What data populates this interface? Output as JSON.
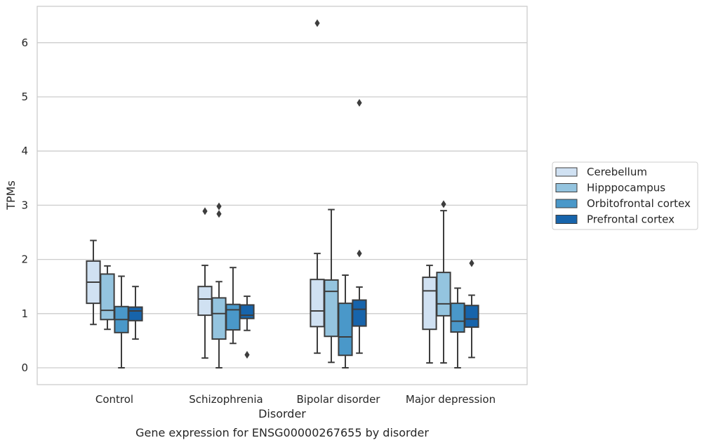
{
  "caption": "Gene expression for ENSG00000267655 by disorder",
  "chart_data": {
    "type": "box",
    "xlabel": "Disorder",
    "ylabel": "TPMs",
    "ylim": [
      -0.3,
      6.7
    ],
    "yticks": [
      0,
      1,
      2,
      3,
      4,
      5,
      6
    ],
    "grid": "horizontal",
    "legend_position": "right",
    "categories": [
      "Control",
      "Schizophrenia",
      "Bipolar disorder",
      "Major depression"
    ],
    "series": [
      {
        "name": "Cerebellum",
        "color": "#d0e1f2",
        "boxes": [
          {
            "min": 0.8,
            "q1": 1.19,
            "median": 1.58,
            "q3": 1.97,
            "max": 2.35,
            "outliers": []
          },
          {
            "min": 0.18,
            "q1": 0.97,
            "median": 1.27,
            "q3": 1.5,
            "max": 1.89,
            "outliers": [
              2.89
            ]
          },
          {
            "min": 0.27,
            "q1": 0.76,
            "median": 1.05,
            "q3": 1.63,
            "max": 2.11,
            "outliers": [
              6.36
            ]
          },
          {
            "min": 0.09,
            "q1": 0.71,
            "median": 1.42,
            "q3": 1.67,
            "max": 1.89,
            "outliers": []
          }
        ]
      },
      {
        "name": "Hipppocampus",
        "color": "#94c4df",
        "boxes": [
          {
            "min": 0.71,
            "q1": 0.89,
            "median": 1.06,
            "q3": 1.73,
            "max": 1.88,
            "outliers": []
          },
          {
            "min": 0.0,
            "q1": 0.53,
            "median": 1.0,
            "q3": 1.29,
            "max": 1.59,
            "outliers": [
              2.84,
              2.98
            ]
          },
          {
            "min": 0.1,
            "q1": 0.58,
            "median": 1.41,
            "q3": 1.62,
            "max": 2.92,
            "outliers": []
          },
          {
            "min": 0.09,
            "q1": 0.96,
            "median": 1.18,
            "q3": 1.76,
            "max": 2.9,
            "outliers": [
              3.02
            ]
          }
        ]
      },
      {
        "name": "Orbitofrontal cortex",
        "color": "#4a98c9",
        "boxes": [
          {
            "min": 0.0,
            "q1": 0.65,
            "median": 0.89,
            "q3": 1.13,
            "max": 1.69,
            "outliers": []
          },
          {
            "min": 0.45,
            "q1": 0.7,
            "median": 1.07,
            "q3": 1.17,
            "max": 1.85,
            "outliers": []
          },
          {
            "min": 0.0,
            "q1": 0.23,
            "median": 0.57,
            "q3": 1.19,
            "max": 1.71,
            "outliers": []
          },
          {
            "min": 0.0,
            "q1": 0.66,
            "median": 0.86,
            "q3": 1.19,
            "max": 1.47,
            "outliers": []
          }
        ]
      },
      {
        "name": "Prefrontal cortex",
        "color": "#1764ab",
        "boxes": [
          {
            "min": 0.53,
            "q1": 0.87,
            "median": 1.05,
            "q3": 1.12,
            "max": 1.5,
            "outliers": []
          },
          {
            "min": 0.69,
            "q1": 0.91,
            "median": 0.97,
            "q3": 1.16,
            "max": 1.32,
            "outliers": [
              0.24
            ]
          },
          {
            "min": 0.27,
            "q1": 0.77,
            "median": 1.08,
            "q3": 1.25,
            "max": 1.49,
            "outliers": [
              2.11,
              4.89
            ]
          },
          {
            "min": 0.19,
            "q1": 0.75,
            "median": 0.9,
            "q3": 1.15,
            "max": 1.34,
            "outliers": [
              1.93
            ]
          }
        ]
      }
    ]
  }
}
